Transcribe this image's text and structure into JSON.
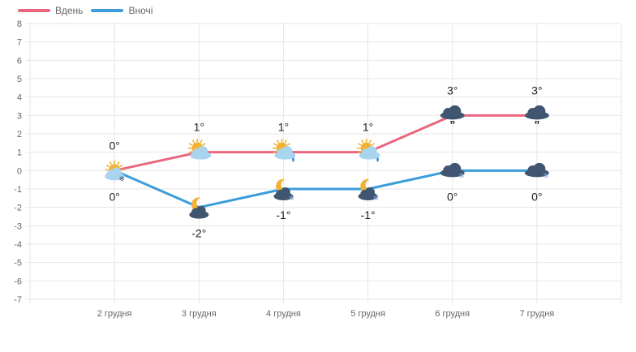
{
  "chart_data": {
    "type": "line",
    "categories": [
      "2 грудня",
      "3 грудня",
      "4 грудня",
      "5 грудня",
      "6 грудня",
      "7 грудня"
    ],
    "series": [
      {
        "name": "Вдень",
        "color": "#e8677e",
        "values": [
          0,
          1,
          1,
          1,
          3,
          3
        ],
        "labels": [
          "0°",
          "1°",
          "1°",
          "1°",
          "3°",
          "3°"
        ],
        "icons": [
          "sun-cloud-snow-icon",
          "sun-cloud-icon",
          "sun-cloud-rain-icon",
          "sun-cloud-rain-icon",
          "cloud-rain-icon",
          "cloud-rain-icon"
        ]
      },
      {
        "name": "Вночі",
        "color": "#3d9ddb",
        "values": [
          0,
          -2,
          -1,
          -1,
          0,
          0
        ],
        "labels": [
          "0°",
          "-2°",
          "-1°",
          "-1°",
          "0°",
          "0°"
        ],
        "icons": [
          "sun-cloud-snow-icon",
          "moon-cloud-icon",
          "moon-cloud-snow-icon",
          "moon-cloud-snow-icon",
          "cloud-snow-icon",
          "cloud-snow-icon"
        ]
      }
    ],
    "ylim": [
      -7,
      8
    ],
    "yticks": [
      "8",
      "7",
      "6",
      "5",
      "4",
      "3",
      "2",
      "1",
      "0",
      "-1",
      "-2",
      "-3",
      "-4",
      "-5",
      "-6",
      "-7"
    ],
    "grid": true,
    "legend_position": "top-left",
    "colors": {
      "grid": "#e6e6e6",
      "tick_text": "#666666",
      "sun": "#f2b233",
      "cloud_light": "#a8d4f0",
      "cloud_dark": "#3f5570"
    }
  }
}
